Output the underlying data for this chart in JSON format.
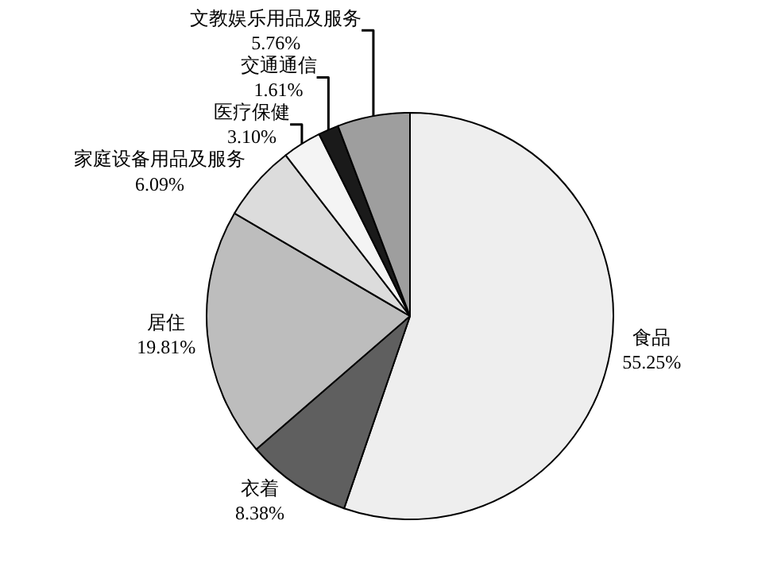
{
  "chart_data": {
    "type": "pie",
    "categories": [
      "食品",
      "衣着",
      "居住",
      "家庭设备用品及服务",
      "医疗保健",
      "交通通信",
      "文教娱乐用品及服务"
    ],
    "values": [
      55.25,
      8.38,
      19.81,
      6.09,
      3.1,
      1.61,
      5.76
    ],
    "value_labels": [
      "55.25%",
      "8.38%",
      "19.81%",
      "6.09%",
      "3.10%",
      "1.61%",
      "5.76%"
    ],
    "colors": [
      "#eeeeee",
      "#5f5f5f",
      "#bdbdbd",
      "#dcdcdc",
      "#f4f4f4",
      "#1a1a1a",
      "#9e9e9e"
    ],
    "legend": false
  }
}
